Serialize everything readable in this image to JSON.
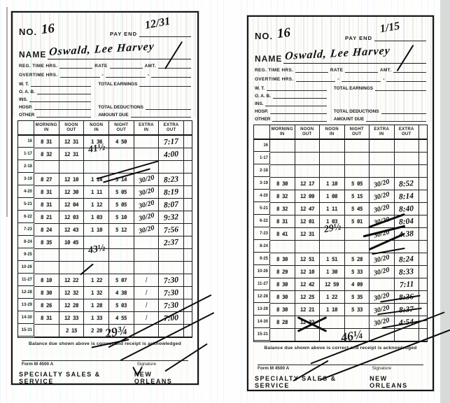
{
  "labels": {
    "no": "NO.",
    "pay_end": "PAY END",
    "name": "NAME",
    "reg_time": "REG. TIME HRS.",
    "rate": "RATE",
    "amt": "AMT.",
    "overtime": "OVERTIME HRS.",
    "wt": "W. T.",
    "oab": "O. A. B.",
    "ins": "INS.",
    "hosp": "HOSP.",
    "other": "OTHER",
    "total_earnings": "TOTAL EARNINGS",
    "total_deductions": "TOTAL DEDUCTIONS",
    "amount_due": "AMOUNT DUE",
    "balance": "Balance due shown above is correct and receipt is acknowledged",
    "form_no": "Form M 4500 A",
    "signature": "Signature",
    "company": "SPECIALTY SALES & SERVICE",
    "city": "NEW ORLEANS"
  },
  "table_headers": [
    "MORNING\nIN",
    "NOON\nOUT",
    "NOON\nIN",
    "NIGHT\nOUT",
    "EXTRA\nIN",
    "EXTRA\nOUT"
  ],
  "cards": [
    {
      "id": "left",
      "no": "16",
      "pay_end": "12/31",
      "name": "Oswald, Lee Harvey",
      "rows": [
        {
          "label": "16",
          "c": [
            "8 31",
            "12 31",
            "1 36",
            "4 50",
            "",
            ""
          ],
          "frac": "",
          "time": "7:17",
          "note": ""
        },
        {
          "label": "1-17",
          "c": [
            "8 32",
            "12 31",
            "",
            "",
            "",
            ""
          ],
          "frac": "",
          "time": "4:00",
          "note": "41½"
        },
        {
          "label": "2-18",
          "c": [
            "",
            "",
            "",
            "",
            "",
            ""
          ],
          "frac": "",
          "time": "",
          "note": ""
        },
        {
          "label": "3-19",
          "c": [
            "8 27",
            "12 10",
            "1 14",
            "5 14",
            "",
            ""
          ],
          "frac": "30/20",
          "time": "8:23",
          "note": ""
        },
        {
          "label": "4-20",
          "c": [
            "8 31",
            "12 30",
            "1 11",
            "5 05",
            "",
            ""
          ],
          "frac": "30/20",
          "time": "8:19",
          "note": ""
        },
        {
          "label": "5-21",
          "c": [
            "8 31",
            "12 04",
            "1 12",
            "5 05",
            "",
            ""
          ],
          "frac": "30/20",
          "time": "8:07",
          "note": ""
        },
        {
          "label": "6-22",
          "c": [
            "8 21",
            "12 03",
            "1 03",
            "5 10",
            "",
            ""
          ],
          "frac": "30/20",
          "time": "9:32",
          "note": ""
        },
        {
          "label": "7-23",
          "c": [
            "8 24",
            "12 43",
            "1 10",
            "5 12",
            "",
            ""
          ],
          "frac": "30/20",
          "time": "7:56",
          "note": ""
        },
        {
          "label": "8-24",
          "c": [
            "8 35",
            "10 45",
            "",
            "",
            "",
            ""
          ],
          "frac": "",
          "time": "2:37",
          "note": ""
        },
        {
          "label": "9-25",
          "c": [
            "",
            "",
            "",
            "",
            "",
            ""
          ],
          "frac": "",
          "time": "",
          "note": "43½"
        },
        {
          "label": "10-26",
          "c": [
            "",
            "",
            "",
            "",
            "",
            ""
          ],
          "frac": "",
          "time": "",
          "note": ""
        },
        {
          "label": "11-27",
          "c": [
            "8 10",
            "12 22",
            "1 22",
            "5 07",
            "",
            ""
          ],
          "frac": "/",
          "time": "7:30",
          "note": ""
        },
        {
          "label": "12-28",
          "c": [
            "8 30",
            "12 32",
            "1 32",
            "4 38",
            "",
            ""
          ],
          "frac": "/",
          "time": "7:30",
          "note": ""
        },
        {
          "label": "13-29",
          "c": [
            "8 26",
            "12 28",
            "1 28",
            "5 03",
            "",
            ""
          ],
          "frac": "/",
          "time": "7:30",
          "note": ""
        },
        {
          "label": "14-30",
          "c": [
            "8 31",
            "12 33",
            "1 33",
            "4 55",
            "",
            ""
          ],
          "frac": "/",
          "time": "7:00",
          "note": ""
        },
        {
          "label": "15-31",
          "c": [
            "",
            "2 15",
            "2 20",
            "",
            "",
            ""
          ],
          "frac": "",
          "time": "",
          "note": "29¾"
        }
      ]
    },
    {
      "id": "right",
      "no": "16",
      "pay_end": "1/15",
      "name": "Oswald, Lee Harvey",
      "rows": [
        {
          "label": "16",
          "c": [
            "",
            "",
            "",
            "",
            "",
            ""
          ],
          "frac": "",
          "time": "",
          "note": ""
        },
        {
          "label": "1-17",
          "c": [
            "",
            "",
            "",
            "",
            "",
            ""
          ],
          "frac": "",
          "time": "",
          "note": ""
        },
        {
          "label": "2-18",
          "c": [
            "",
            "",
            "",
            "",
            "",
            ""
          ],
          "frac": "",
          "time": "",
          "note": ""
        },
        {
          "label": "3-19",
          "c": [
            "8 30",
            "12 17",
            "1 10",
            "5 05",
            "",
            ""
          ],
          "frac": "30/20",
          "time": "8:52",
          "note": ""
        },
        {
          "label": "4-20",
          "c": [
            "8 32",
            "12 09",
            "1 08",
            "5 15",
            "",
            ""
          ],
          "frac": "30/20",
          "time": "8:14",
          "note": ""
        },
        {
          "label": "5-21",
          "c": [
            "8 32",
            "12 47",
            "1 11",
            "5 45",
            "",
            ""
          ],
          "frac": "30/20",
          "time": "8:40",
          "note": ""
        },
        {
          "label": "6-22",
          "c": [
            "8 31",
            "12 01",
            "1 03",
            "5 01",
            "",
            ""
          ],
          "frac": "30/20",
          "time": "8:04",
          "note": ""
        },
        {
          "label": "7-23",
          "c": [
            "8 41",
            "12 31",
            "",
            "",
            "",
            ""
          ],
          "frac": "30/20",
          "time": "4:38",
          "note": "29½"
        },
        {
          "label": "8-24",
          "c": [
            "",
            "",
            "",
            "",
            "",
            ""
          ],
          "frac": "",
          "time": "",
          "note": ""
        },
        {
          "label": "9-25",
          "c": [
            "8 30",
            "12 51",
            "1 51",
            "5 28",
            "",
            ""
          ],
          "frac": "30/20",
          "time": "8:24",
          "note": ""
        },
        {
          "label": "10-26",
          "c": [
            "8 29",
            "12 10",
            "1 30",
            "5 33",
            "",
            ""
          ],
          "frac": "30/20",
          "time": "8:33",
          "note": ""
        },
        {
          "label": "11-27",
          "c": [
            "8 30",
            "12 42",
            "12 59",
            "4 09",
            "",
            ""
          ],
          "frac": "",
          "time": "7:11",
          "note": ""
        },
        {
          "label": "12-28",
          "c": [
            "8 30",
            "12 25",
            "1 22",
            "5 35",
            "",
            ""
          ],
          "frac": "30/20",
          "time": "8:36",
          "note": ""
        },
        {
          "label": "13-29",
          "c": [
            "8 30",
            "12 21",
            "1 10",
            "5 33",
            "",
            ""
          ],
          "frac": "30/20",
          "time": "8:37",
          "note": ""
        },
        {
          "label": "14-30",
          "c": [
            "8 28",
            "12 32",
            "",
            "",
            "",
            ""
          ],
          "frac": "30/20",
          "time": "4:54",
          "note": ""
        },
        {
          "label": "15-31",
          "c": [
            "",
            "",
            "",
            "",
            "",
            ""
          ],
          "frac": "",
          "time": "",
          "note": "46¼"
        }
      ]
    }
  ]
}
